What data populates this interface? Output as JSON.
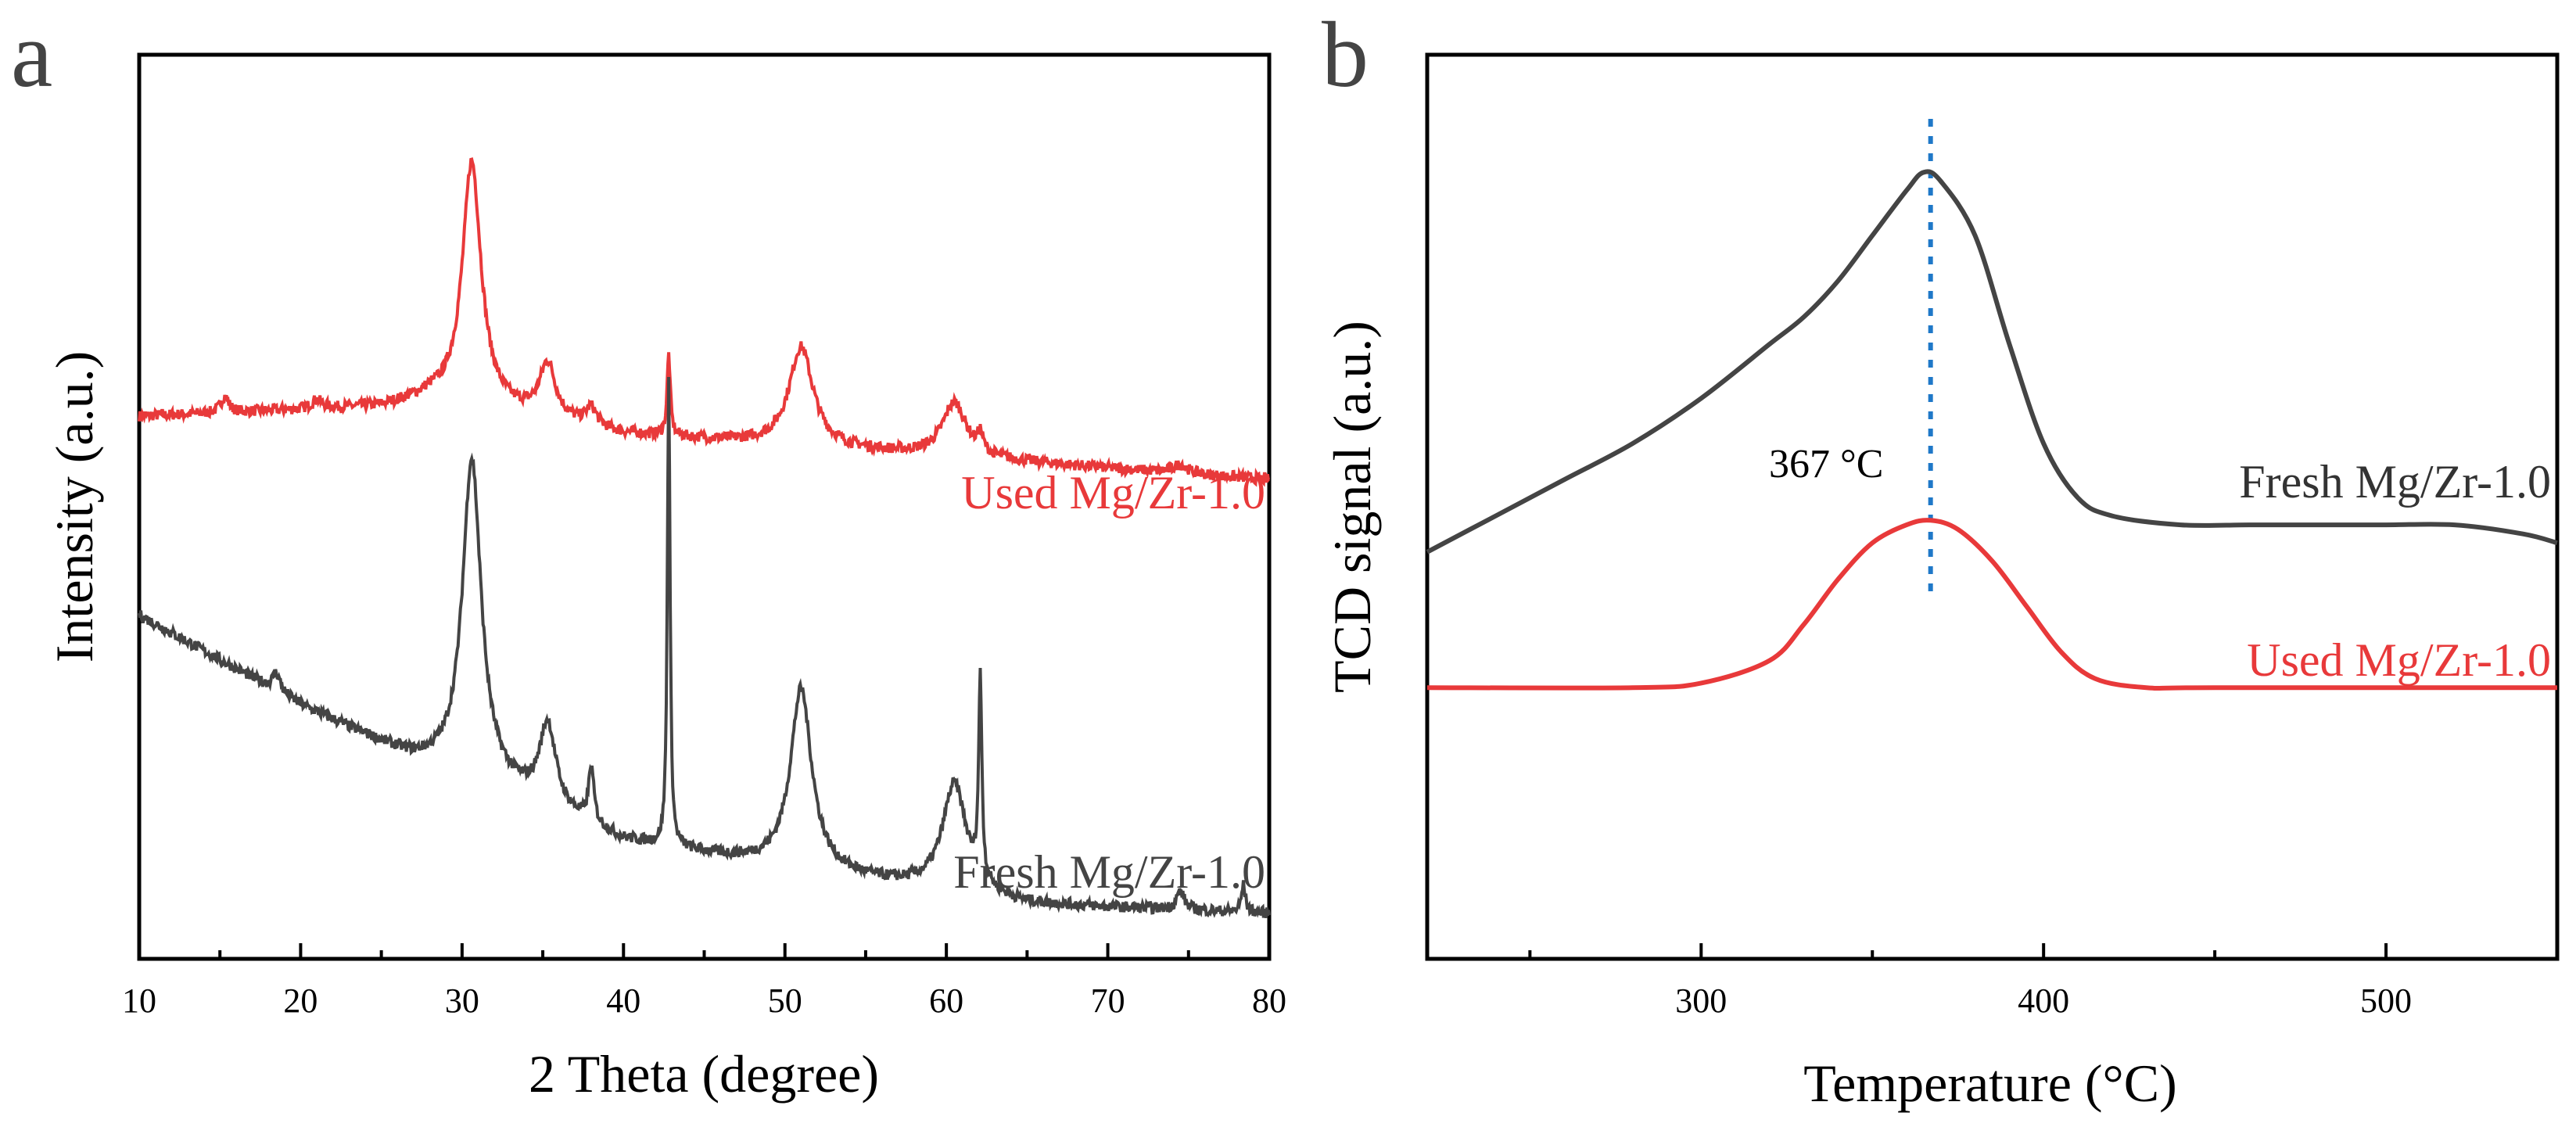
{
  "chart_data": [
    {
      "panel": "a",
      "type": "line",
      "title": "",
      "xlabel": "2 Theta (degree)",
      "ylabel": "Intensity (a.u.)",
      "xlim": [
        10,
        80
      ],
      "xticks": [
        10,
        20,
        30,
        40,
        50,
        60,
        70,
        80
      ],
      "yticks": [],
      "legend": "inline labels",
      "grid": false,
      "series": [
        {
          "name": "Used Mg/Zr-1.0",
          "label": "Used Mg/Zr-1.0",
          "color": "#e8393a",
          "baseline": [
            [
              10,
              0.6
            ],
            [
              25,
              0.61
            ],
            [
              28,
              0.62
            ],
            [
              40,
              0.58
            ],
            [
              80,
              0.53
            ]
          ],
          "peaks": [
            [
              15.3,
              0.018,
              0.3
            ],
            [
              21,
              0.01,
              0.4
            ],
            [
              30.6,
              0.27,
              0.7
            ],
            [
              35.3,
              0.06,
              0.6
            ],
            [
              38,
              0.02,
              0.4
            ],
            [
              42.8,
              0.09,
              0.12
            ],
            [
              51,
              0.11,
              0.9
            ],
            [
              60.5,
              0.06,
              0.9
            ],
            [
              62.1,
              0.02,
              0.2
            ],
            [
              74.5,
              0.01,
              0.5
            ]
          ]
        },
        {
          "name": "Fresh Mg/Zr-1.0",
          "label": "Fresh Mg/Zr-1.0",
          "color": "#444444",
          "baseline": [
            [
              10,
              0.38
            ],
            [
              20,
              0.28
            ],
            [
              27,
              0.22
            ],
            [
              31,
              0.2
            ],
            [
              40,
              0.13
            ],
            [
              50,
              0.1
            ],
            [
              65,
              0.06
            ],
            [
              80,
              0.05
            ]
          ],
          "peaks": [
            [
              18.5,
              0.02,
              0.3
            ],
            [
              30.6,
              0.35,
              0.7
            ],
            [
              35.3,
              0.09,
              0.6
            ],
            [
              38,
              0.06,
              0.2
            ],
            [
              42.8,
              0.52,
              0.1
            ],
            [
              51,
              0.2,
              0.8
            ],
            [
              60.5,
              0.12,
              0.9
            ],
            [
              62.1,
              0.22,
              0.12
            ],
            [
              74.5,
              0.02,
              0.3
            ],
            [
              78.4,
              0.03,
              0.15
            ]
          ]
        }
      ]
    },
    {
      "panel": "b",
      "type": "line",
      "title": "",
      "xlabel": "Temperature (°C)",
      "ylabel": "TCD signal (a.u.)",
      "xlim": [
        220,
        550
      ],
      "xticks": [
        300,
        400,
        500
      ],
      "yticks": [],
      "legend": "inline labels",
      "grid": false,
      "peak_marker": {
        "x": 367,
        "label": "367 °C",
        "color": "#1f78c8",
        "style": "dotted"
      },
      "series": [
        {
          "name": "Fresh Mg/Zr-1.0",
          "label": "Fresh Mg/Zr-1.0",
          "color": "#444444",
          "x": [
            220,
            240,
            260,
            280,
            300,
            320,
            330,
            340,
            350,
            360,
            365,
            370,
            380,
            390,
            400,
            410,
            420,
            440,
            460,
            480,
            500,
            520,
            540,
            550
          ],
          "y": [
            0.45,
            0.49,
            0.53,
            0.57,
            0.62,
            0.68,
            0.71,
            0.75,
            0.8,
            0.85,
            0.87,
            0.86,
            0.8,
            0.68,
            0.57,
            0.51,
            0.49,
            0.48,
            0.48,
            0.48,
            0.48,
            0.48,
            0.47,
            0.46
          ]
        },
        {
          "name": "Used Mg/Zr-1.0",
          "label": "Used Mg/Zr-1.0",
          "color": "#e8393a",
          "x": [
            220,
            280,
            300,
            320,
            330,
            340,
            350,
            360,
            367,
            375,
            385,
            395,
            405,
            415,
            430,
            450,
            550
          ],
          "y": [
            0.3,
            0.3,
            0.305,
            0.33,
            0.37,
            0.42,
            0.46,
            0.48,
            0.485,
            0.475,
            0.44,
            0.39,
            0.34,
            0.31,
            0.3,
            0.3,
            0.3
          ]
        }
      ]
    }
  ]
}
